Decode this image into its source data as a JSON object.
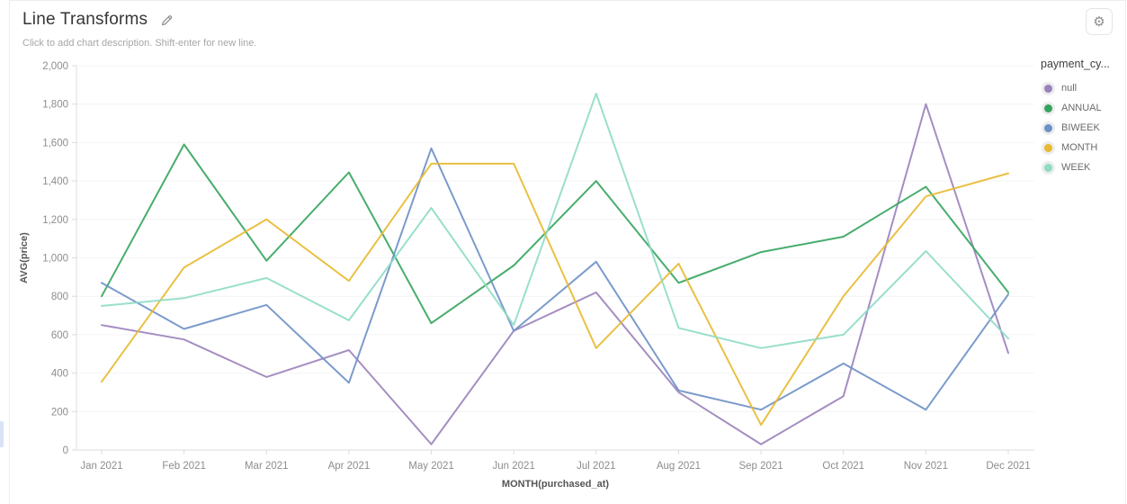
{
  "header": {
    "title": "Line Transforms",
    "subtitle": "Click to add chart description. Shift-enter for new line."
  },
  "settings": {
    "icon": "gear",
    "glyph": "⚙"
  },
  "legend": {
    "title": "payment_cy...",
    "items": [
      {
        "label": "null",
        "color": "#9a82ba"
      },
      {
        "label": "ANNUAL",
        "color": "#34a45d"
      },
      {
        "label": "BIWEEK",
        "color": "#6d90c5"
      },
      {
        "label": "MONTH",
        "color": "#e8b930"
      },
      {
        "label": "WEEK",
        "color": "#8edcc5"
      }
    ]
  },
  "chart_data": {
    "type": "line",
    "title": "Line Transforms",
    "xlabel": "MONTH(purchased_at)",
    "ylabel": "AVG(price)",
    "x": [
      "Jan 2021",
      "Feb 2021",
      "Mar 2021",
      "Apr 2021",
      "May 2021",
      "Jun 2021",
      "Jul 2021",
      "Aug 2021",
      "Sep 2021",
      "Oct 2021",
      "Nov 2021",
      "Dec 2021"
    ],
    "ylim": [
      0,
      2000
    ],
    "ytick_step": 200,
    "grid": true,
    "legend_position": "right",
    "legend_title": "payment_cy...",
    "series": [
      {
        "name": "null",
        "color": "#9a82ba",
        "values": [
          650,
          575,
          380,
          520,
          30,
          620,
          820,
          300,
          30,
          280,
          1800,
          505
        ]
      },
      {
        "name": "ANNUAL",
        "color": "#34a45d",
        "values": [
          800,
          1590,
          985,
          1445,
          660,
          960,
          1400,
          870,
          1030,
          1110,
          1370,
          820
        ]
      },
      {
        "name": "BIWEEK",
        "color": "#6d90c5",
        "values": [
          870,
          630,
          755,
          350,
          1570,
          620,
          980,
          310,
          210,
          450,
          210,
          810
        ]
      },
      {
        "name": "MONTH",
        "color": "#e8b930",
        "values": [
          355,
          950,
          1200,
          880,
          1490,
          1490,
          530,
          970,
          130,
          800,
          1320,
          1440
        ]
      },
      {
        "name": "WEEK",
        "color": "#8edcc5",
        "values": [
          750,
          790,
          895,
          675,
          1260,
          650,
          1855,
          635,
          530,
          600,
          1035,
          580
        ]
      }
    ]
  }
}
